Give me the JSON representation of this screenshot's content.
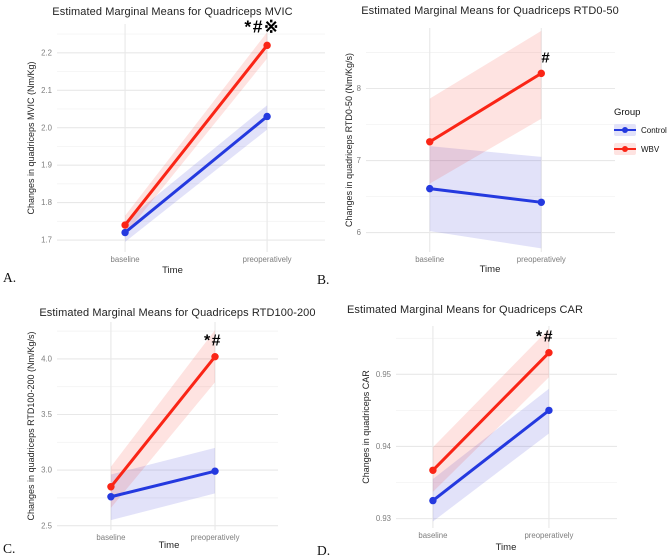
{
  "colors": {
    "control": "#2439df",
    "wbv": "#fa2516",
    "control_band": "rgba(85,85,220,0.17)",
    "wbv_band": "rgba(250,37,22,0.13)",
    "grid_major": "#e8e8e8",
    "grid_minor": "#f4f4f4",
    "tick_text": "#7e7e7e",
    "axis_text": "#1f1f1f",
    "annotation_text": "#000000"
  },
  "panel_labels": [
    "A.",
    "B.",
    "C.",
    "D."
  ],
  "legend": {
    "title": "Group",
    "items": [
      {
        "key": "control",
        "label": "Control"
      },
      {
        "key": "wbv",
        "label": "WBV"
      }
    ]
  },
  "chart_data": [
    {
      "type": "line",
      "title": "Estimated Marginal Means for Quadriceps MVIC",
      "xlabel": "Time",
      "ylabel": "Changes in quadriceps MVIC (Nm/Kg)",
      "categories": [
        "baseline",
        "preoperatively"
      ],
      "yticks": [
        1.7,
        1.8,
        1.9,
        2.0,
        2.1,
        2.2
      ],
      "ytick_labels": [
        "1.7",
        "1.8",
        "1.9",
        "2.0",
        "2.1",
        "2.2"
      ],
      "ylim": [
        1.668,
        2.277
      ],
      "grid": true,
      "legend_position": "none",
      "annotation": {
        "text": "*#※",
        "series": "WBV",
        "at": "preoperatively"
      },
      "series": [
        {
          "name": "Control",
          "color": "control",
          "values": [
            1.72,
            2.03
          ],
          "band_low": [
            1.695,
            1.995
          ],
          "band_high": [
            1.75,
            2.06
          ]
        },
        {
          "name": "WBV",
          "color": "wbv",
          "values": [
            1.74,
            2.22
          ],
          "band_low": [
            1.715,
            2.185
          ],
          "band_high": [
            1.765,
            2.255
          ]
        }
      ]
    },
    {
      "type": "line",
      "title": "Estimated Marginal Means for Quadriceps RTD0-50",
      "xlabel": "Time",
      "ylabel": "Changes in quadriceps RTD0-50 (Nm/Kg/s)",
      "categories": [
        "baseline",
        "preoperatively"
      ],
      "yticks": [
        6,
        7,
        8
      ],
      "ytick_labels": [
        "6",
        "7",
        "8"
      ],
      "ylim": [
        5.73,
        8.84
      ],
      "grid": true,
      "legend_position": "right",
      "annotation": {
        "text": "#",
        "series": "WBV",
        "at": "preoperatively"
      },
      "series": [
        {
          "name": "Control",
          "color": "control",
          "values": [
            6.61,
            6.42
          ],
          "band_low": [
            6.02,
            5.78
          ],
          "band_high": [
            7.2,
            7.05
          ]
        },
        {
          "name": "WBV",
          "color": "wbv",
          "values": [
            7.26,
            8.21
          ],
          "band_low": [
            6.68,
            7.58
          ],
          "band_high": [
            7.86,
            8.8
          ]
        }
      ]
    },
    {
      "type": "line",
      "title": "Estimated Marginal Means for Quadriceps RTD100-200",
      "xlabel": "Time",
      "ylabel": "Changes in quadriceps RTD100-200 (Nm/Kg/s)",
      "categories": [
        "baseline",
        "preoperatively"
      ],
      "yticks": [
        2.5,
        3.0,
        3.5,
        4.0
      ],
      "ytick_labels": [
        "2.5",
        "3.0",
        "3.5",
        "4.0"
      ],
      "ylim": [
        2.461,
        4.332
      ],
      "grid": true,
      "legend_position": "none",
      "annotation": {
        "text": "*#",
        "series": "WBV",
        "at": "preoperatively"
      },
      "series": [
        {
          "name": "Control",
          "color": "control",
          "values": [
            2.76,
            2.99
          ],
          "band_low": [
            2.55,
            2.79
          ],
          "band_high": [
            2.96,
            3.2
          ]
        },
        {
          "name": "WBV",
          "color": "wbv",
          "values": [
            2.85,
            4.02
          ],
          "band_low": [
            2.66,
            3.79
          ],
          "band_high": [
            3.03,
            4.26
          ]
        }
      ]
    },
    {
      "type": "line",
      "title": "Estimated Marginal Means for Quadriceps CAR",
      "xlabel": "Time",
      "ylabel": "Changes in quadriceps CAR",
      "categories": [
        "baseline",
        "preoperatively"
      ],
      "yticks": [
        0.93,
        0.94,
        0.95
      ],
      "ytick_labels": [
        "0.93",
        "0.94",
        "0.95"
      ],
      "ylim": [
        0.9287,
        0.9567
      ],
      "grid": true,
      "legend_position": "none",
      "annotation": {
        "text": "*#",
        "series": "WBV",
        "at": "preoperatively"
      },
      "series": [
        {
          "name": "Control",
          "color": "control",
          "values": [
            0.9325,
            0.945
          ],
          "band_low": [
            0.9296,
            0.9418
          ],
          "band_high": [
            0.9355,
            0.948
          ]
        },
        {
          "name": "WBV",
          "color": "wbv",
          "values": [
            0.9367,
            0.953
          ],
          "band_low": [
            0.9337,
            0.9496
          ],
          "band_high": [
            0.9399,
            0.9563
          ]
        }
      ]
    }
  ]
}
